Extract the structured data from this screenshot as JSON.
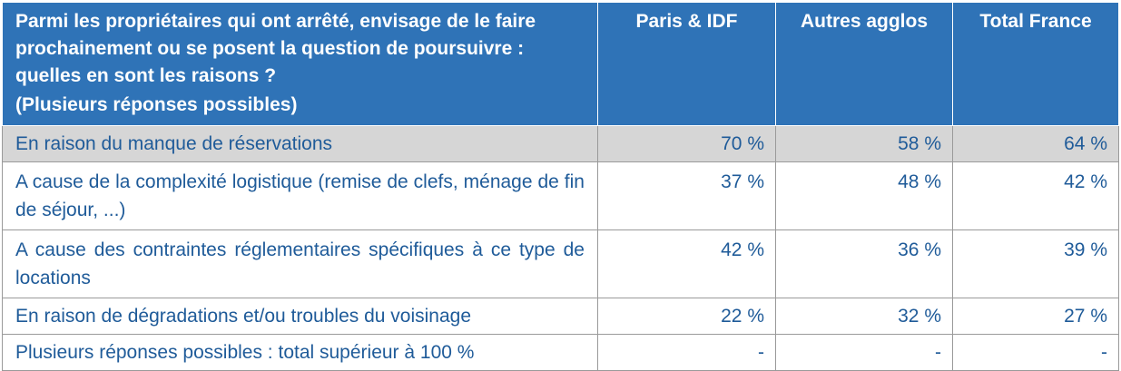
{
  "header": {
    "question": "Parmi les propriétaires qui ont arrêté, envisage de le faire prochainement ou se posent la question de poursuivre : quelles en sont les raisons ?",
    "note": "(Plusieurs réponses possibles)",
    "columns": [
      "Paris & IDF",
      "Autres agglos",
      "Total France"
    ]
  },
  "rows": [
    {
      "label": "En raison du manque de réservations",
      "values": [
        "70 %",
        "58 %",
        "64 %"
      ]
    },
    {
      "label": "A cause de la complexité logistique (remise de clefs, ménage de fin de séjour, ...)",
      "values": [
        "37 %",
        "48 %",
        "42 %"
      ]
    },
    {
      "label": "A cause des contraintes réglementaires spécifiques à ce type de locations",
      "values": [
        "42 %",
        "36 %",
        "39 %"
      ]
    },
    {
      "label": "En raison de dégradations et/ou troubles du voisinage",
      "values": [
        "22 %",
        "32 %",
        "27 %"
      ]
    },
    {
      "label": "Plusieurs réponses possibles : total supérieur à 100 %",
      "values": [
        "-",
        "-",
        "-"
      ]
    }
  ],
  "colors": {
    "header_bg": "#2f73b7",
    "header_text": "#ffffff",
    "body_text": "#1f5b99",
    "highlight_row": "#d6d6d6"
  }
}
